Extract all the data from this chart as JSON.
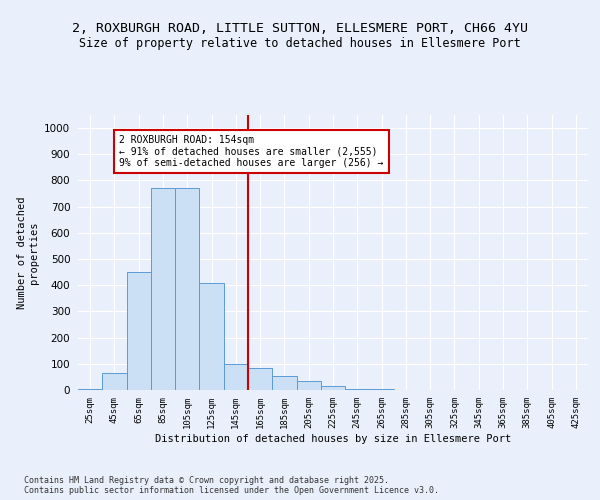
{
  "title_line1": "2, ROXBURGH ROAD, LITTLE SUTTON, ELLESMERE PORT, CH66 4YU",
  "title_line2": "Size of property relative to detached houses in Ellesmere Port",
  "xlabel": "Distribution of detached houses by size in Ellesmere Port",
  "ylabel": "Number of detached\nproperties",
  "categories": [
    "25sqm",
    "45sqm",
    "65sqm",
    "85sqm",
    "105sqm",
    "125sqm",
    "145sqm",
    "165sqm",
    "185sqm",
    "205sqm",
    "225sqm",
    "245sqm",
    "265sqm",
    "285sqm",
    "305sqm",
    "325sqm",
    "345sqm",
    "365sqm",
    "385sqm",
    "405sqm",
    "425sqm"
  ],
  "values": [
    5,
    65,
    450,
    770,
    770,
    410,
    100,
    85,
    55,
    35,
    15,
    5,
    2,
    0,
    0,
    0,
    0,
    0,
    0,
    0,
    0
  ],
  "bar_color": "#cce0f5",
  "bar_edge_color": "#5b9bd5",
  "vline_color": "#cc0000",
  "annotation_text": "2 ROXBURGH ROAD: 154sqm\n← 91% of detached houses are smaller (2,555)\n9% of semi-detached houses are larger (256) →",
  "annotation_box_color": "#ffffff",
  "annotation_box_edge": "#cc0000",
  "ylim": [
    0,
    1050
  ],
  "yticks": [
    0,
    100,
    200,
    300,
    400,
    500,
    600,
    700,
    800,
    900,
    1000
  ],
  "title_fontsize": 9.5,
  "subtitle_fontsize": 8.5,
  "footer_text": "Contains HM Land Registry data © Crown copyright and database right 2025.\nContains public sector information licensed under the Open Government Licence v3.0.",
  "bg_color": "#eaf0fb",
  "plot_bg_color": "#eaf0fb",
  "grid_color": "#ffffff"
}
